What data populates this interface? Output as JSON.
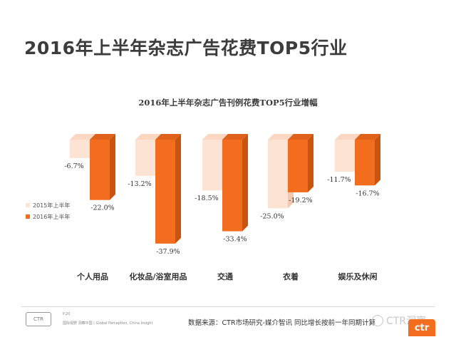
{
  "page_title": "2016年上半年杂志广告花费TOP5行业",
  "chart_data": {
    "type": "bar",
    "title": "2016年上半年杂志广告刊例花费TOP5行业增幅",
    "categories": [
      "个人用品",
      "化妆品/浴室用品",
      "交通",
      "衣着",
      "娱乐及休闲"
    ],
    "series": [
      {
        "name": "2015年上半年",
        "values": [
          -6.7,
          -13.2,
          -18.5,
          -25.0,
          -11.7
        ],
        "labels": [
          "-6.7%",
          "-13.2%",
          "-18.5%",
          "-25.0%",
          "-11.7%"
        ],
        "color": "#fde3d3"
      },
      {
        "name": "2016年上半年",
        "values": [
          -22.0,
          -37.9,
          -33.4,
          -19.2,
          -16.7
        ],
        "labels": [
          "-22.0%",
          "-37.9%",
          "-33.4%",
          "-19.2%",
          "-16.7%"
        ],
        "color": "#f26e1e"
      }
    ],
    "ylim": [
      -40,
      0
    ],
    "xlabel": "",
    "ylabel": "",
    "legend": "left"
  },
  "footer": {
    "logo_text": "CTR",
    "small_text_1": "P.20",
    "small_text_2": "国际视野 洞察中国 | Global Perception, China Insight",
    "source": "数据来源：CTR市场研究-媒介智讯  同比增长按前一年同期计算",
    "watermark": "CTR洞察",
    "brand": "ctr"
  }
}
